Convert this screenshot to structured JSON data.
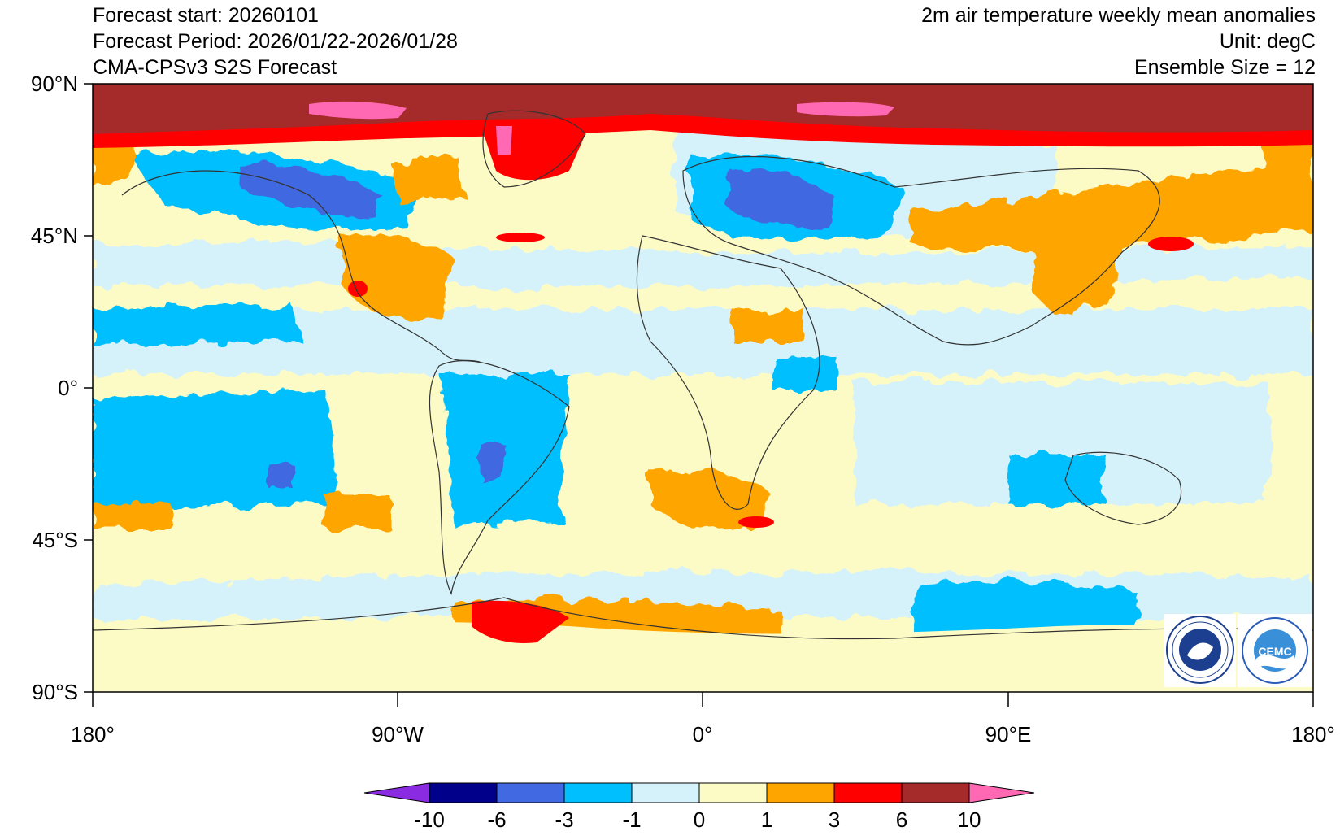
{
  "header": {
    "left_lines": [
      "Forecast start: 20260101",
      "Forecast Period: 2026/01/22-2026/01/28",
      "CMA-CPSv3 S2S Forecast"
    ],
    "right_lines": [
      "2m air temperature weekly mean anomalies",
      "Unit: degC",
      "Ensemble Size = 12"
    ]
  },
  "axes": {
    "lat_ticks": [
      "90°N",
      "45°N",
      "0°",
      "45°S",
      "90°S"
    ],
    "lon_ticks": [
      "180°",
      "90°W",
      "0°",
      "90°E",
      "180°"
    ]
  },
  "colorbar": {
    "levels": [
      "-10",
      "-6",
      "-3",
      "-1",
      "0",
      "1",
      "3",
      "6",
      "10"
    ],
    "colors": [
      "#8a2be2",
      "#00008b",
      "#4169e1",
      "#00bfff",
      "#d5f2fb",
      "#fdfbc5",
      "#ffa500",
      "#ff0000",
      "#a52a2a",
      "#ff69b4"
    ]
  },
  "logos": {
    "left": {
      "name": "cma-logo",
      "text": "中国气象局",
      "ring_text": "CHINA METEOROLOGICAL ADMINISTRATION"
    },
    "right": {
      "name": "cemc-logo",
      "text": "CEMC"
    }
  }
}
